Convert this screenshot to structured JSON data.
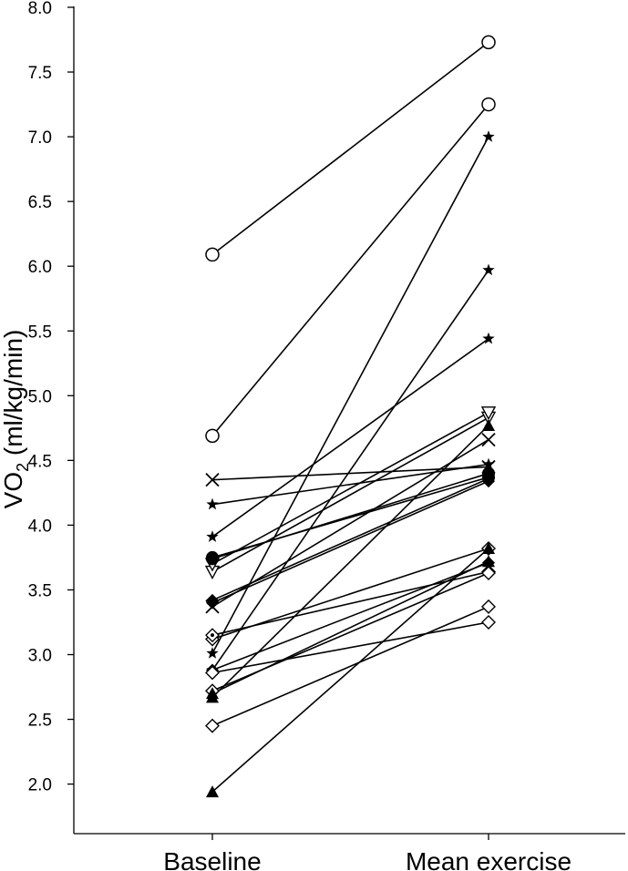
{
  "chart_data": {
    "type": "line",
    "title": "",
    "xlabel": "",
    "ylabel": "VO2 (ml/kg/min)",
    "ylabel_parts": {
      "main": "VO",
      "sub": "2",
      "rest": " (ml/kg/min)"
    },
    "categories": [
      "Baseline",
      "Mean exercise"
    ],
    "ylim": [
      1.6,
      8.0
    ],
    "yticks": [
      "2.0",
      "2.5",
      "3.0",
      "3.5",
      "4.0",
      "4.5",
      "5.0",
      "5.5",
      "6.0",
      "6.5",
      "7.0",
      "7.5",
      "8.0"
    ],
    "grid": false,
    "legend": "none",
    "series": [
      {
        "marker": "circle-open",
        "values": [
          6.09,
          7.73
        ]
      },
      {
        "marker": "circle-open",
        "values": [
          4.69,
          7.25
        ]
      },
      {
        "marker": "star",
        "values": [
          3.01,
          7.0
        ]
      },
      {
        "marker": "star",
        "values": [
          2.88,
          5.97
        ]
      },
      {
        "marker": "star",
        "values": [
          3.91,
          5.44
        ]
      },
      {
        "marker": "star",
        "values": [
          4.16,
          4.47
        ]
      },
      {
        "marker": "x",
        "values": [
          4.35,
          4.45
        ]
      },
      {
        "marker": "x",
        "values": [
          3.37,
          4.66
        ]
      },
      {
        "marker": "triangle-down-open",
        "values": [
          3.64,
          4.83
        ]
      },
      {
        "marker": "triangle-down-open",
        "values": [
          3.7,
          4.87
        ]
      },
      {
        "marker": "circle-filled",
        "values": [
          3.74,
          4.4
        ]
      },
      {
        "marker": "circle-filled",
        "values": [
          3.75,
          4.37
        ]
      },
      {
        "marker": "diamond-filled",
        "values": [
          3.42,
          4.36
        ]
      },
      {
        "marker": "diamond-filled",
        "values": [
          3.4,
          4.34
        ]
      },
      {
        "marker": "diamond-open-dot",
        "values": [
          3.12,
          3.82
        ]
      },
      {
        "marker": "diamond-open-dot",
        "values": [
          3.15,
          3.64
        ]
      },
      {
        "marker": "triangle-filled",
        "values": [
          2.67,
          4.77
        ]
      },
      {
        "marker": "triangle-filled",
        "values": [
          1.94,
          3.82
        ]
      },
      {
        "marker": "diamond-filled",
        "values": [
          2.88,
          3.71
        ]
      },
      {
        "marker": "diamond-open",
        "values": [
          2.72,
          3.63
        ]
      },
      {
        "marker": "diamond-open",
        "values": [
          2.45,
          3.37
        ]
      },
      {
        "marker": "diamond-open",
        "values": [
          2.86,
          3.25
        ]
      },
      {
        "marker": "triangle-filled",
        "values": [
          2.7,
          3.72
        ]
      }
    ]
  }
}
